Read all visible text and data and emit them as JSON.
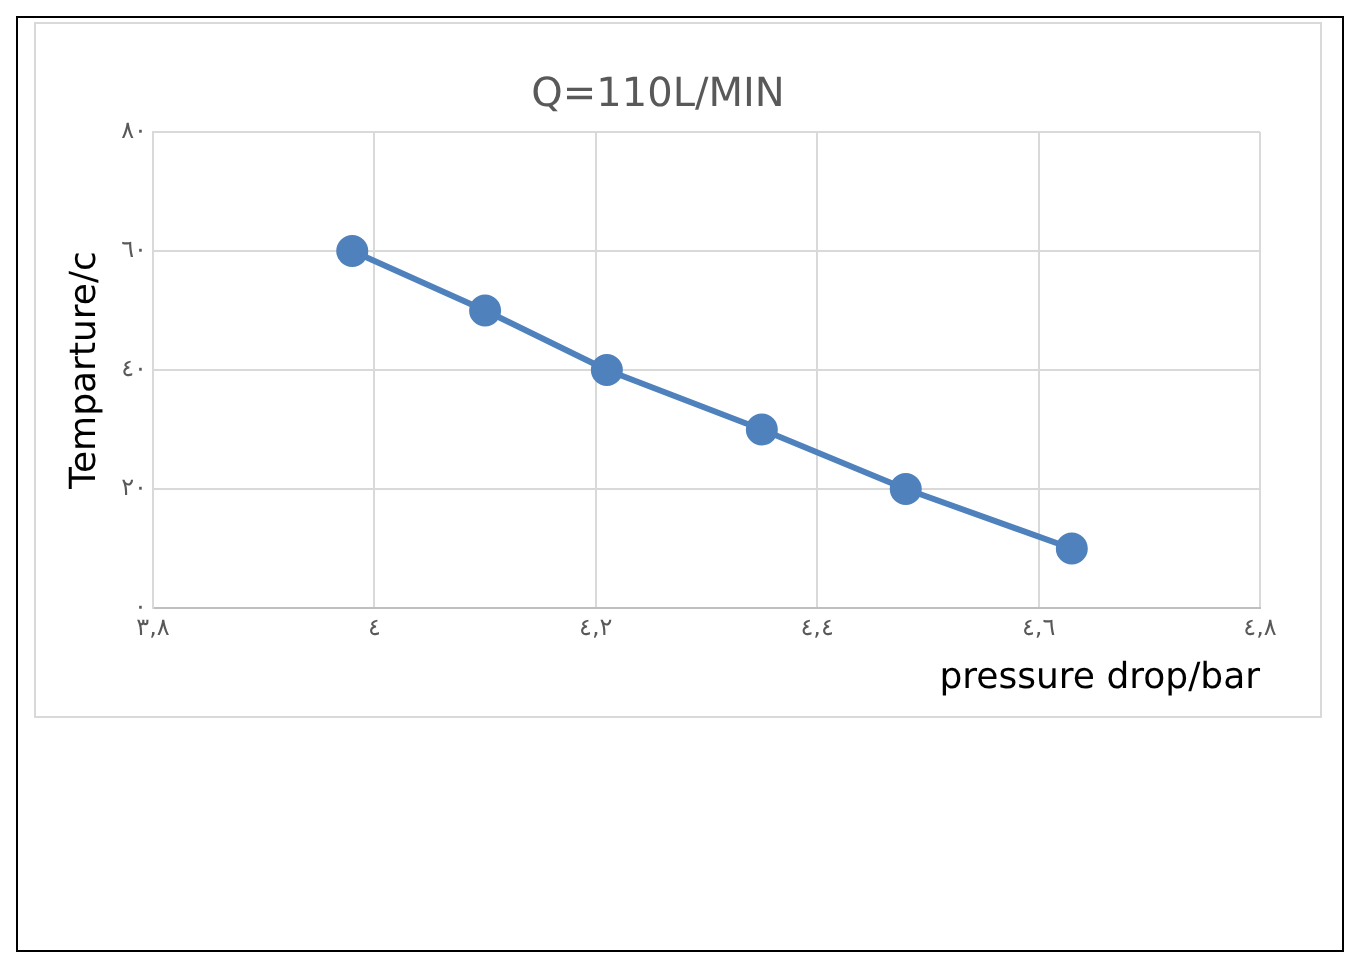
{
  "chart_data": {
    "type": "line",
    "title": "Q=110L/MIN",
    "xlabel": "pressure drop/bar",
    "ylabel": "Temparture/c",
    "x": [
      3.98,
      4.1,
      4.21,
      4.35,
      4.48,
      4.63
    ],
    "series": [
      {
        "color": "#4f81bd",
        "values": [
          60,
          50,
          40,
          30,
          20,
          10
        ]
      }
    ],
    "xlim": [
      3.8,
      4.8
    ],
    "xticks": [
      {
        "value": 3.8,
        "label": "٣,٨"
      },
      {
        "value": 4,
        "label": "٤"
      },
      {
        "value": 4.2,
        "label": "٤,٢"
      },
      {
        "value": 4.4,
        "label": "٤,٤"
      },
      {
        "value": 4.6,
        "label": "٤,٦"
      },
      {
        "value": 4.8,
        "label": "٤,٨"
      }
    ],
    "ylim": [
      0,
      80
    ],
    "yticks": [
      {
        "value": 0,
        "label": "٠"
      },
      {
        "value": 20,
        "label": "٢٠"
      },
      {
        "value": 40,
        "label": "٤٠"
      },
      {
        "value": 60,
        "label": "٦٠"
      },
      {
        "value": 80,
        "label": "٨٠"
      }
    ],
    "grid": true,
    "legend": false,
    "marker": "circle",
    "line_style": "solid"
  }
}
